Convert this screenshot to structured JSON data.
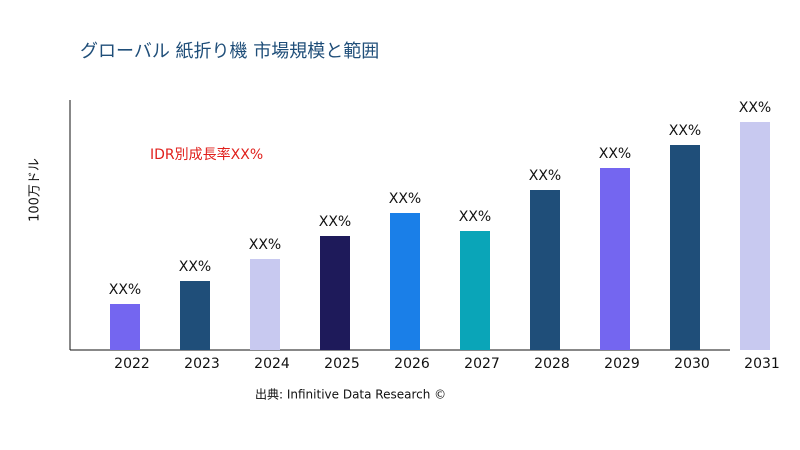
{
  "chart_data": {
    "type": "bar",
    "title": "グローバル 紙折り機 市場規模と範囲",
    "y_label": "100万ドル",
    "annotation": "IDR別成長率XX%",
    "source": "出典: Infinitive Data Research ©",
    "categories": [
      "2022",
      "2023",
      "2024",
      "2025",
      "2026",
      "2027",
      "2028",
      "2029",
      "2030",
      "2031"
    ],
    "values": [
      46,
      69,
      91,
      114,
      137,
      119,
      160,
      182,
      205,
      228
    ],
    "value_labels": [
      "XX%",
      "XX%",
      "XX%",
      "XX%",
      "XX%",
      "XX%",
      "XX%",
      "XX%",
      "XX%",
      "XX%"
    ],
    "colors": [
      "#7466f0",
      "#1f4e79",
      "#c8c9f0",
      "#1e1a5a",
      "#1a7fe8",
      "#0aa5b8",
      "#1f4e79",
      "#7466f0",
      "#1f4e79",
      "#c8c9f0"
    ],
    "ylim": [
      0,
      250
    ]
  }
}
